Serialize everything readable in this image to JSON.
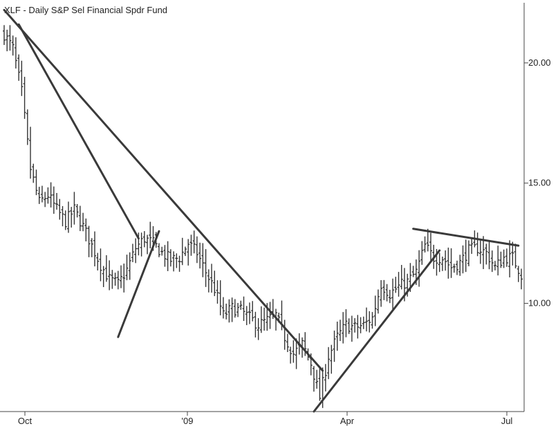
{
  "chart_data": {
    "type": "ohlc",
    "title": "XLF - Daily  S&P Sel Financial Spdr Fund",
    "x_ticks": [
      "Oct",
      "'09",
      "Apr",
      "Jul"
    ],
    "y_ticks": [
      "10.00",
      "15.00",
      "20.00"
    ],
    "ylim": [
      5.5,
      22.5
    ],
    "price_path": [
      [
        0,
        21.2
      ],
      [
        3,
        20.6
      ],
      [
        6,
        18.8
      ],
      [
        9,
        15.6
      ],
      [
        12,
        14.2
      ],
      [
        15,
        14.5
      ],
      [
        18,
        13.9
      ],
      [
        21,
        13.4
      ],
      [
        24,
        13.9
      ],
      [
        27,
        13.2
      ],
      [
        30,
        12.4
      ],
      [
        33,
        11.6
      ],
      [
        36,
        11.0
      ],
      [
        39,
        10.8
      ],
      [
        42,
        11.4
      ],
      [
        45,
        12.3
      ],
      [
        48,
        12.7
      ],
      [
        51,
        12.5
      ],
      [
        54,
        12.1
      ],
      [
        57,
        11.8
      ],
      [
        60,
        11.9
      ],
      [
        63,
        12.5
      ],
      [
        66,
        12.1
      ],
      [
        69,
        11.3
      ],
      [
        72,
        10.6
      ],
      [
        75,
        9.5
      ],
      [
        78,
        9.8
      ],
      [
        81,
        9.7
      ],
      [
        84,
        9.4
      ],
      [
        87,
        9.1
      ],
      [
        90,
        9.3
      ],
      [
        93,
        9.5
      ],
      [
        96,
        8.6
      ],
      [
        99,
        7.9
      ],
      [
        102,
        8.3
      ],
      [
        105,
        7.5
      ],
      [
        108,
        6.1
      ],
      [
        111,
        7.8
      ],
      [
        114,
        8.6
      ],
      [
        117,
        9.1
      ],
      [
        120,
        9.0
      ],
      [
        123,
        9.1
      ],
      [
        126,
        9.4
      ],
      [
        129,
        10.8
      ],
      [
        132,
        10.4
      ],
      [
        135,
        10.7
      ],
      [
        138,
        10.9
      ],
      [
        141,
        11.3
      ],
      [
        144,
        12.4
      ],
      [
        147,
        11.9
      ],
      [
        150,
        11.9
      ],
      [
        153,
        11.5
      ],
      [
        156,
        11.7
      ],
      [
        159,
        12.2
      ],
      [
        162,
        12.3
      ],
      [
        165,
        12.1
      ],
      [
        168,
        11.5
      ],
      [
        171,
        11.9
      ],
      [
        174,
        11.9
      ],
      [
        177,
        11.2
      ]
    ],
    "trendlines": [
      {
        "from": [
          0,
          22.2
        ],
        "to": [
          109,
          7.2
        ]
      },
      {
        "from": [
          5,
          21.6
        ],
        "to": [
          46,
          12.7
        ]
      },
      {
        "from": [
          39,
          8.6
        ],
        "to": [
          53,
          13.0
        ]
      },
      {
        "from": [
          106,
          5.5
        ],
        "to": [
          149,
          12.2
        ]
      },
      {
        "from": [
          140,
          13.1
        ],
        "to": [
          176,
          12.4
        ]
      }
    ]
  }
}
